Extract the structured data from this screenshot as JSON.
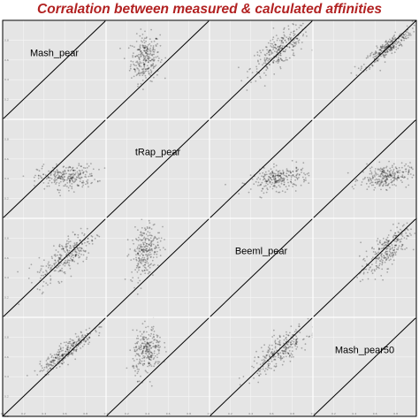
{
  "chart_data": {
    "type": "scatter",
    "subtype": "scatterplot-matrix",
    "title": "Corralation between measured & calculated affinities",
    "variables": [
      "Mash_pear",
      "tRap_pear",
      "Beeml_pear",
      "Mash_pear50"
    ],
    "axis_ticks": [
      "0.0",
      "0.2",
      "0.4",
      "0.6",
      "0.8"
    ],
    "axis_range": [
      0.0,
      1.0
    ],
    "grid": true,
    "reference_line": "y = x",
    "colors": {
      "panel_background": "#e5e5e5",
      "grid": "#f6f6f6",
      "points": "#000000",
      "title": "#b22222",
      "border": "#000000"
    },
    "cloud_summary": [
      {
        "row": "Mash_pear",
        "col": "tRap_pear",
        "x_center": 0.38,
        "y_center": 0.62,
        "x_spread": 0.07,
        "y_spread": 0.12,
        "correlation": 0.1
      },
      {
        "row": "Mash_pear",
        "col": "Beeml_pear",
        "x_center": 0.68,
        "y_center": 0.7,
        "x_spread": 0.14,
        "y_spread": 0.12,
        "correlation": 0.75
      },
      {
        "row": "Mash_pear",
        "col": "Mash_pear50",
        "x_center": 0.72,
        "y_center": 0.72,
        "x_spread": 0.12,
        "y_spread": 0.1,
        "correlation": 0.9
      },
      {
        "row": "tRap_pear",
        "col": "Mash_pear",
        "x_center": 0.62,
        "y_center": 0.42,
        "x_spread": 0.14,
        "y_spread": 0.06,
        "correlation": 0.1
      },
      {
        "row": "tRap_pear",
        "col": "Beeml_pear",
        "x_center": 0.68,
        "y_center": 0.4,
        "x_spread": 0.14,
        "y_spread": 0.06,
        "correlation": 0.3
      },
      {
        "row": "tRap_pear",
        "col": "Mash_pear50",
        "x_center": 0.7,
        "y_center": 0.42,
        "x_spread": 0.12,
        "y_spread": 0.06,
        "correlation": 0.2
      },
      {
        "row": "Beeml_pear",
        "col": "Mash_pear",
        "x_center": 0.62,
        "y_center": 0.62,
        "x_spread": 0.14,
        "y_spread": 0.14,
        "correlation": 0.75
      },
      {
        "row": "Beeml_pear",
        "col": "tRap_pear",
        "x_center": 0.38,
        "y_center": 0.68,
        "x_spread": 0.07,
        "y_spread": 0.14,
        "correlation": 0.3
      },
      {
        "row": "Beeml_pear",
        "col": "Mash_pear50",
        "x_center": 0.7,
        "y_center": 0.66,
        "x_spread": 0.12,
        "y_spread": 0.14,
        "correlation": 0.78
      },
      {
        "row": "Mash_pear50",
        "col": "Mash_pear",
        "x_center": 0.62,
        "y_center": 0.66,
        "x_spread": 0.13,
        "y_spread": 0.11,
        "correlation": 0.9
      },
      {
        "row": "Mash_pear50",
        "col": "tRap_pear",
        "x_center": 0.4,
        "y_center": 0.66,
        "x_spread": 0.07,
        "y_spread": 0.12,
        "correlation": 0.2
      },
      {
        "row": "Mash_pear50",
        "col": "Beeml_pear",
        "x_center": 0.68,
        "y_center": 0.66,
        "x_spread": 0.14,
        "y_spread": 0.12,
        "correlation": 0.78
      }
    ]
  }
}
